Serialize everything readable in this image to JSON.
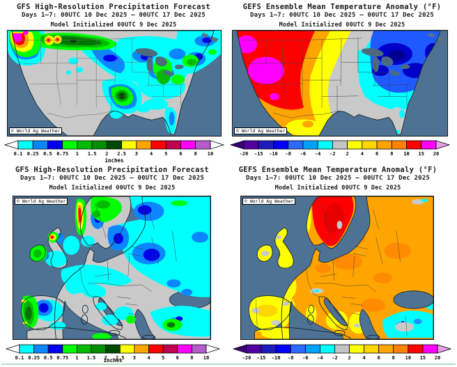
{
  "page": {
    "background": "#ffffff",
    "footer_rule_color": "#b5dcc6"
  },
  "map_colors": {
    "ocean": "#4d7294",
    "land": "#c9c9c9"
  },
  "panels": [
    {
      "id": "us-precip",
      "title": "GFS High-Resolution Precipitation Forecast",
      "subtitle": "Days 1–7: 00UTC 10 Dec 2025 – 00UTC 17 Dec 2025",
      "model_line": "Model Initialized 00UTC 9 Dec 2025",
      "watermark": "© World Ag Weather",
      "colorbar": "precip"
    },
    {
      "id": "us-temp",
      "title": "GEFS Ensemble Mean Temperature Anomaly (°F)",
      "subtitle": "Days 1–7: 00UTC 10 Dec 2025 – 00UTC 17 Dec 2025",
      "model_line": "Model Initialized 00UTC 9 Dec 2025",
      "watermark": "© World Ag Weather",
      "colorbar": "temp"
    },
    {
      "id": "eu-precip",
      "title": "GFS High-Resolution Precipitation Forecast",
      "subtitle": "Days 1–7: 00UTC 10 Dec 2025 – 00UTC 17 Dec 2025",
      "model_line": "Model Initialized 00UTC 9 Dec 2025",
      "watermark": "© World Ag Weather",
      "colorbar": "precip"
    },
    {
      "id": "eu-temp",
      "title": "GEFS Ensemble Mean Temperature Anomaly (°F)",
      "subtitle": "Days 1–7: 00UTC 10 Dec 2025 – 00UTC 17 Dec 2025",
      "model_line": "Model Initialized 00UTC 9 Dec 2025",
      "watermark": "© World Ag Weather",
      "colorbar": "temp"
    }
  ],
  "colorbars": {
    "precip": {
      "unit": "inches",
      "ticks": [
        "0.1",
        "0.25",
        "0.5",
        "0.75",
        "1",
        "1.5",
        "2",
        "2.5",
        "3",
        "4",
        "5",
        "6",
        "8",
        "10"
      ],
      "cells": [
        "#00ffff",
        "#0c86ff",
        "#0000f0",
        "#00ff00",
        "#00bb00",
        "#008f00",
        "#004a00",
        "#ffff00",
        "#ffa500",
        "#ff0000",
        "#c10050",
        "#ff00ff",
        "#b45ccc"
      ],
      "arrow_left": "#ffffff",
      "arrow_right": "#ffffff"
    },
    "temp": {
      "unit": "",
      "ticks": [
        "-20",
        "-15",
        "-10",
        "-8",
        "-6",
        "-4",
        "-2",
        "2",
        "4",
        "6",
        "8",
        "10",
        "15",
        "20"
      ],
      "cells": [
        "#5000a0",
        "#1c1cbe",
        "#0000ff",
        "#2e6aff",
        "#00a2ff",
        "#00ffff",
        "#c4c4c4",
        "#ffff00",
        "#ffd700",
        "#ffa500",
        "#ff8200",
        "#ff0000",
        "#ff00ff"
      ],
      "arrow_left": "#3a0078",
      "arrow_right": "#eb9ae8"
    }
  }
}
